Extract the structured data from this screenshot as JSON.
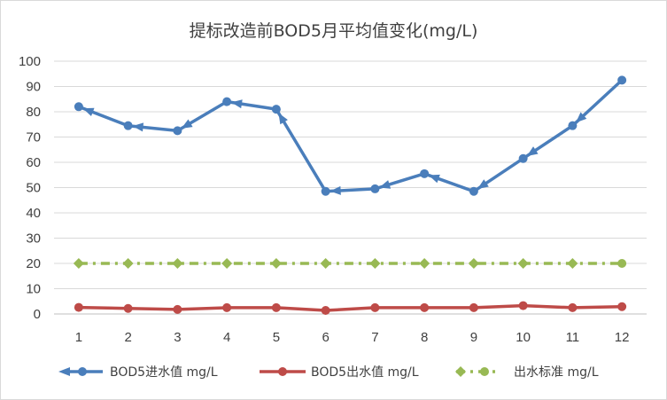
{
  "chart_data": {
    "type": "line",
    "title": "提标改造前BOD5月平均值变化(mg/L)",
    "xlabel": "",
    "ylabel": "",
    "categories": [
      "1",
      "2",
      "3",
      "4",
      "5",
      "6",
      "7",
      "8",
      "9",
      "10",
      "11",
      "12"
    ],
    "ylim": [
      0,
      100
    ],
    "yticks": [
      "0",
      "10",
      "20",
      "30",
      "40",
      "50",
      "60",
      "70",
      "80",
      "90",
      "100"
    ],
    "grid": true,
    "legend_position": "bottom",
    "series": [
      {
        "name": "BOD5进水值 mg/L",
        "color": "#4a7ebb",
        "style": "solid-with-arrows",
        "values": [
          82,
          74.5,
          72.5,
          84,
          81,
          48.5,
          49.5,
          55.5,
          48.5,
          61.5,
          74.5,
          92.5
        ]
      },
      {
        "name": "BOD5出水值 mg/L",
        "color": "#be4b48",
        "style": "solid",
        "values": [
          2.6,
          2.2,
          1.8,
          2.5,
          2.5,
          1.4,
          2.5,
          2.5,
          2.5,
          3.3,
          2.5,
          2.9
        ]
      },
      {
        "name": "出水标准 mg/L",
        "color": "#98b954",
        "style": "dash-dot",
        "values": [
          20,
          20,
          20,
          20,
          20,
          20,
          20,
          20,
          20,
          20,
          20,
          20
        ]
      }
    ]
  }
}
